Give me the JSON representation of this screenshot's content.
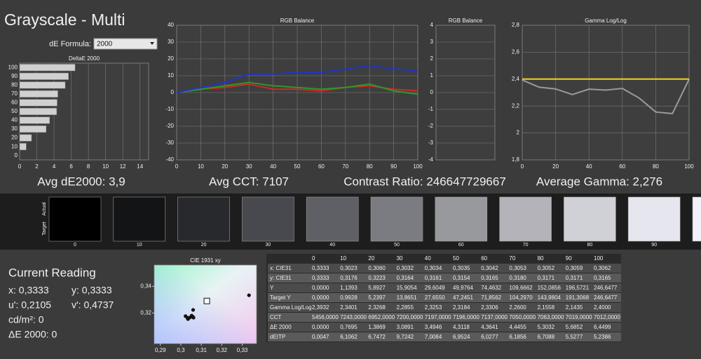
{
  "title": "Grayscale - Multi",
  "de_formula": {
    "label": "dE Formula:",
    "value": "2000"
  },
  "chart_data": [
    {
      "type": "bar",
      "title": "DeltaE 2000",
      "categories": [
        "100",
        "90",
        "80",
        "70",
        "60",
        "50",
        "40",
        "30",
        "20",
        "10",
        "0"
      ],
      "values": [
        6.4499,
        5.6852,
        5.3032,
        4.4455,
        4.3641,
        4.3118,
        3.4946,
        3.0891,
        1.3869,
        0.7695,
        0
      ],
      "color": "#d0d0d0",
      "xlim": [
        0,
        15
      ],
      "xticks": [
        0,
        2,
        4,
        6,
        8,
        10,
        12,
        14
      ],
      "grid": true
    },
    {
      "type": "line",
      "title": "RGB Balance",
      "x": [
        0,
        10,
        20,
        30,
        40,
        50,
        60,
        70,
        80,
        90,
        100
      ],
      "series": [
        {
          "color": "#d02828",
          "values": [
            0,
            2,
            3,
            5,
            2,
            2,
            1,
            3,
            4,
            2,
            1
          ]
        },
        {
          "color": "#2a9a2a",
          "values": [
            0,
            2,
            4,
            6,
            4,
            3,
            2,
            3,
            5,
            1,
            -1
          ]
        },
        {
          "color": "#2233cc",
          "values": [
            0,
            3,
            6,
            11,
            11,
            12,
            12,
            14,
            16,
            14,
            13
          ]
        }
      ],
      "xlim": [
        0,
        100
      ],
      "xticks": [
        0,
        10,
        20,
        30,
        40,
        50,
        60,
        70,
        80,
        90,
        100
      ],
      "ylim": [
        -40,
        40
      ],
      "yticks": [
        -40,
        -30,
        -20,
        -10,
        0,
        10,
        20,
        30,
        40
      ],
      "grid": true
    },
    {
      "type": "line",
      "title": "RGB Balance",
      "ylim": [
        -4,
        4
      ],
      "yticks": [
        -4,
        -3,
        -2,
        -1,
        0,
        1,
        2,
        3,
        4
      ],
      "grid": true
    },
    {
      "type": "line",
      "title": "Gamma Log/Log",
      "x": [
        0,
        10,
        20,
        30,
        40,
        50,
        60,
        70,
        80,
        90,
        100
      ],
      "series": [
        {
          "color": "#9a9a9a",
          "values": [
            2.3932,
            2.3401,
            2.3268,
            2.2855,
            2.3253,
            2.3184,
            2.3306,
            2.26,
            2.1558,
            2.1435,
            2.4
          ]
        },
        {
          "color": "#f2d21a",
          "values": [
            2.4,
            2.4,
            2.4,
            2.4,
            2.4,
            2.4,
            2.4,
            2.4,
            2.4,
            2.4,
            2.4
          ]
        }
      ],
      "xlim": [
        0,
        100
      ],
      "xticks": [
        0,
        20,
        40,
        60,
        80,
        100
      ],
      "ylim": [
        1.8,
        2.8
      ],
      "yticks": [
        {
          "value": 1.8,
          "label": "1,8"
        },
        2,
        {
          "value": 2.2,
          "label": "2,2"
        },
        {
          "value": 2.4,
          "label": "2,4"
        },
        {
          "value": 2.6,
          "label": "2,6"
        },
        {
          "value": 2.8,
          "label": "2,8"
        }
      ],
      "grid": true
    },
    {
      "type": "scatter",
      "title": "CIE 1931 xy",
      "x": [
        0.3333,
        0.3023,
        0.306,
        0.3032,
        0.3034,
        0.3035,
        0.3042,
        0.3053,
        0.3052,
        0.3059,
        0.3062
      ],
      "values": [
        0.3333,
        0.3176,
        0.3223,
        0.3164,
        0.3161,
        0.3154,
        0.3165,
        0.318,
        0.3171,
        0.3171,
        0.3165
      ],
      "target": {
        "x": 0.3127,
        "y": 0.329
      },
      "color": "#111111",
      "xlim": [
        0.287,
        0.337
      ],
      "xticks": [
        {
          "value": 0.29,
          "label": "0,29"
        },
        {
          "value": 0.3,
          "label": "0,3"
        },
        {
          "value": 0.31,
          "label": "0,31"
        },
        {
          "value": 0.32,
          "label": "0,32"
        },
        {
          "value": 0.33,
          "label": "0,33"
        }
      ],
      "ylim": [
        0.297,
        0.356
      ],
      "yticks": [
        {
          "value": 0.32,
          "label": "0,32"
        },
        {
          "value": 0.34,
          "label": "0,34"
        }
      ]
    }
  ],
  "summary": [
    "Avg dE2000: 3,9",
    "Avg CCT: 7107",
    "Contrast Ratio: 246647729667",
    "Average Gamma: 2,276"
  ],
  "swatches": {
    "row_labels": [
      "Actual",
      "Target"
    ],
    "items": [
      {
        "label": "0",
        "color": "#000000"
      },
      {
        "label": "10",
        "color": "#131416"
      },
      {
        "label": "20",
        "color": "#28292c"
      },
      {
        "label": "30",
        "color": "#48494e"
      },
      {
        "label": "40",
        "color": "#5f6065"
      },
      {
        "label": "50",
        "color": "#7b7c81"
      },
      {
        "label": "60",
        "color": "#98999d"
      },
      {
        "label": "70",
        "color": "#b3b3b9"
      },
      {
        "label": "80",
        "color": "#d0d0d7"
      },
      {
        "label": "90",
        "color": "#e6e6ef"
      },
      {
        "label": "100",
        "color": "#f3f1fb"
      }
    ]
  },
  "current_reading": {
    "title": "Current Reading",
    "lines": [
      "x: 0,3333",
      "y: 0,3333",
      "u': 0,2105",
      "v': 0,4737",
      "cd/m²: 0",
      "ΔE 2000: 0"
    ]
  },
  "table": {
    "header": [
      "0",
      "10",
      "20",
      "30",
      "40",
      "50",
      "60",
      "70",
      "80",
      "90",
      "100"
    ],
    "rows": [
      [
        "x: CIE31",
        "0,3333",
        "0,3023",
        "0,3060",
        "0,3032",
        "0,3034",
        "0,3035",
        "0,3042",
        "0,3053",
        "0,3052",
        "0,3059",
        "0,3062"
      ],
      [
        "y: CIE31",
        "0,3333",
        "0,3176",
        "0,3223",
        "0,3164",
        "0,3161",
        "0,3154",
        "0,3165",
        "0,3180",
        "0,3171",
        "0,3171",
        "0,3165"
      ],
      [
        "Y",
        "0,0000",
        "1,1393",
        "5,8927",
        "15,9054",
        "29,6049",
        "49,9764",
        "74,4632",
        "109,6662",
        "152,0856",
        "196,5721",
        "246,6477"
      ],
      [
        "Target Y",
        "0,0000",
        "0,9928",
        "5,2397",
        "13,8651",
        "27,6550",
        "47,2451",
        "71,8562",
        "104,2970",
        "143,9804",
        "191,3068",
        "246,6477"
      ],
      [
        "Gamma Log/Log",
        "2,3932",
        "2,3401",
        "2,3268",
        "2,2855",
        "2,3253",
        "2,3184",
        "2,3306",
        "2,2600",
        "2,1558",
        "2,1435",
        "2,4000"
      ],
      [
        "CCT",
        "5456,0000",
        "7243,0000",
        "6952,0000",
        "7200,0000",
        "7197,0000",
        "7196,0000",
        "7137,0000",
        "7050,0000",
        "7063,0000",
        "7019,0000",
        "7012,0000"
      ],
      [
        "ΔE 2000",
        "0,0000",
        "0,7695",
        "1,3869",
        "3,0891",
        "3,4946",
        "4,3118",
        "4,3641",
        "4,4455",
        "5,3032",
        "5,6852",
        "6,4499"
      ],
      [
        "dEITP",
        "0,0047",
        "6,1062",
        "6,7472",
        "9,7242",
        "7,0084",
        "6,9524",
        "6,0277",
        "6,1856",
        "6,7088",
        "5,5277",
        "5,2386"
      ]
    ]
  }
}
